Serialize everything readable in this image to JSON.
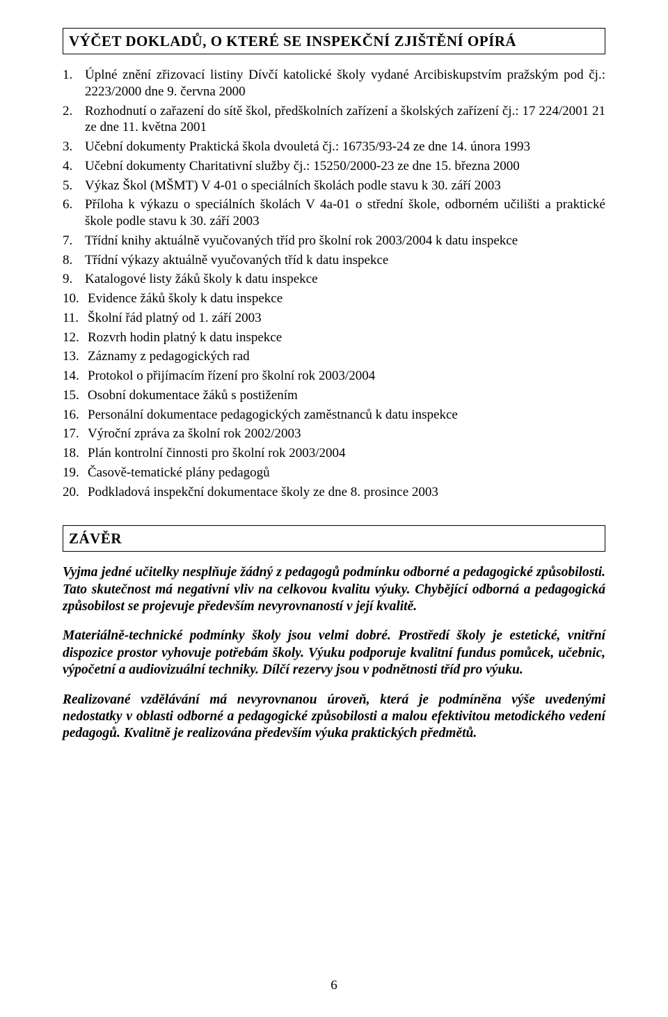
{
  "doc": {
    "page_number": "6",
    "section1": {
      "title": "VÝČET DOKLADŮ, O KTERÉ SE INSPEKČNÍ ZJIŠTĚNÍ OPÍRÁ",
      "items": [
        {
          "n": "1.",
          "t": "Úplné znění zřizovací listiny Dívčí katolické školy vydané Arcibiskupstvím pražským pod čj.: 2223/2000 dne 9. června 2000",
          "justify": true
        },
        {
          "n": "2.",
          "t": "Rozhodnutí o zařazení do sítě škol, předškolních zařízení a školských zařízení čj.: 17 224/2001 21 ze dne 11. května 2001",
          "justify": true
        },
        {
          "n": "3.",
          "t": "Учební dokumenty Praktická škola dvouletá čj.: 16735/93-24 ze dne 14. února 1993"
        },
        {
          "n": "4.",
          "t": "Učební dokumenty Charitativní služby čj.: 15250/2000-23 ze dne 15. března 2000"
        },
        {
          "n": "5.",
          "t": "Výkaz Škol (MŠMT) V 4-01 o speciálních školách podle stavu k 30. září 2003"
        },
        {
          "n": "6.",
          "t": "Příloha k výkazu o speciálních školách V 4a-01 o střední škole, odborném učilišti a praktické škole podle stavu k 30. září 2003",
          "justify": true
        },
        {
          "n": "7.",
          "t": "Třídní knihy aktuálně vyučovaných tříd pro školní rok 2003/2004 k datu inspekce"
        },
        {
          "n": "8.",
          "t": "Třídní výkazy aktuálně vyučovaných tříd k datu inspekce"
        },
        {
          "n": "9.",
          "t": "Katalogové listy žáků školy k datu inspekce"
        },
        {
          "n": "10.",
          "t": "Evidence žáků školy k datu inspekce"
        },
        {
          "n": "11.",
          "t": "Školní řád platný od 1. září 2003"
        },
        {
          "n": "12.",
          "t": "Rozvrh hodin platný k datu inspekce"
        },
        {
          "n": "13.",
          "t": "Záznamy z pedagogických rad"
        },
        {
          "n": "14.",
          "t": "Protokol o přijímacím řízení pro školní rok 2003/2004"
        },
        {
          "n": "15.",
          "t": "Osobní dokumentace žáků s postižením"
        },
        {
          "n": "16.",
          "t": "Personální dokumentace pedagogických zaměstnanců k datu inspekce"
        },
        {
          "n": "17.",
          "t": "Výroční zpráva za školní rok 2002/2003"
        },
        {
          "n": "18.",
          "t": "Plán kontrolní činnosti pro školní rok 2003/2004"
        },
        {
          "n": "19.",
          "t": "Časově-tematické plány pedagogů"
        },
        {
          "n": "20.",
          "t": "Podkladová inspekční dokumentace školy ze dne 8. prosince 2003"
        }
      ]
    },
    "section2": {
      "title": "ZÁVĚR",
      "paras": [
        "Vyjma jedné učitelky nesplňuje žádný z pedagogů podmínku odborné a pedagogické způsobilosti. Tato skutečnost má negativní vliv na celkovou kvalitu výuky. Chybějící odborná a pedagogická způsobilost se projevuje především nevyrovnaností v její kvalitě.",
        "Materiálně-technické podmínky školy jsou velmi dobré. Prostředí školy je estetické, vnitřní dispozice prostor vyhovuje potřebám školy. Výuku podporuje kvalitní fundus pomůcek, učebnic, výpočetní a audiovizuální techniky. Dílčí rezervy jsou v podnětnosti tříd pro výuku.",
        "Realizované vzdělávání má nevyrovnanou úroveň, která je podmíněna výše uvedenými nedostatky v oblasti odborné a pedagogické způsobilosti a malou efektivitou metodického vedení pedagogů. Kvalitně je realizována především výuka praktických předmětů."
      ]
    },
    "fix": {
      "item3": "Učební dokumenty Praktická škola dvouletá čj.: 16735/93-24 ze dne 14. února 1993"
    }
  }
}
